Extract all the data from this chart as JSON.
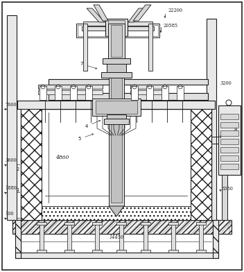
{
  "bg_color": "#ffffff",
  "line_color": "#1a1a1a",
  "fig_w": 3.52,
  "fig_h": 3.92,
  "dpi": 100
}
